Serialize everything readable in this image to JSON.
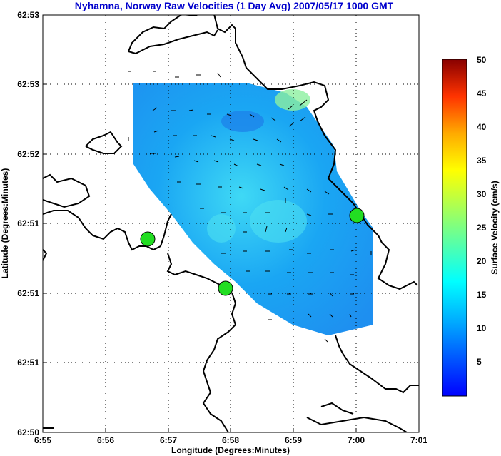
{
  "chart_data": {
    "type": "heatmap",
    "title": "Nyhamna, Norway Raw Velocities (1 Day Avg) 2007/05/17 1000 GMT",
    "xlabel": "Longitude (Degrees:Minutes)",
    "ylabel": "Latitude (Degrees:Minutes)",
    "x_ticks": [
      "6:55",
      "6:56",
      "6:57",
      "6:58",
      "6:59",
      "7:00",
      "7:01"
    ],
    "y_ticks": [
      "62:53",
      "62:53",
      "62:52",
      "62:51",
      "62:51",
      "62:51",
      "62:50"
    ],
    "grid": true,
    "colorbar": {
      "label": "Surface Velocity (cm/s)",
      "ticks": [
        "5",
        "10",
        "15",
        "20",
        "25",
        "30",
        "35",
        "40",
        "45",
        "50"
      ],
      "range": [
        0,
        50
      ],
      "colormap": "jet"
    },
    "sites": [
      {
        "lon": 6.947,
        "lat": 62.8575,
        "color": "#22dd22"
      },
      {
        "lon": 6.966,
        "lat": 62.8475,
        "color": "#22dd22"
      },
      {
        "lon": 7.0,
        "lat": 62.8655,
        "color": "#22dd22"
      }
    ]
  },
  "colors": {
    "title": "#0000cc",
    "coast": "#000000",
    "site": "#22dd22"
  }
}
